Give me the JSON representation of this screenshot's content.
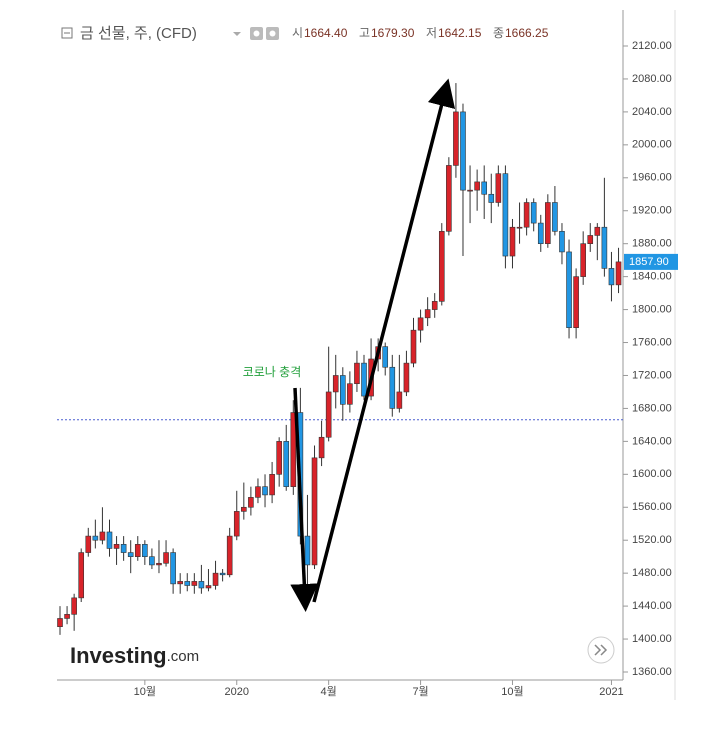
{
  "chart_data": {
    "type": "candlestick",
    "title": "금 선물, 주, (CFD)",
    "header_values": [
      {
        "name": "시",
        "value": 1664.4,
        "label": "1664.40"
      },
      {
        "name": "고",
        "value": 1679.3,
        "label": "1679.30"
      },
      {
        "name": "저",
        "value": 1642.15,
        "label": "1642.15"
      },
      {
        "name": "종",
        "value": 1666.25,
        "label": "1666.25"
      }
    ],
    "annotation": "코로나 충격",
    "watermark": {
      "brand": "Investing",
      "suffix": ".com"
    },
    "last_price": {
      "value": 1857.9,
      "label": "1857.90"
    },
    "up_color": "#d8232a",
    "down_color": "#2196e3",
    "grid": false,
    "categories": [
      null,
      null,
      null,
      null,
      null,
      null,
      null,
      null,
      null,
      null,
      null,
      null,
      "10월",
      null,
      null,
      null,
      null,
      null,
      null,
      null,
      null,
      null,
      null,
      null,
      null,
      "2020",
      null,
      null,
      null,
      null,
      null,
      null,
      null,
      null,
      null,
      null,
      null,
      null,
      "4월",
      null,
      null,
      null,
      null,
      null,
      null,
      null,
      null,
      null,
      null,
      null,
      null,
      "7월",
      null,
      null,
      null,
      null,
      null,
      null,
      null,
      null,
      null,
      null,
      null,
      null,
      "10월",
      null,
      null,
      null,
      null,
      null,
      null,
      null,
      null,
      null,
      null,
      null,
      null,
      null,
      "2021",
      null
    ],
    "open": [
      1415,
      1425,
      1430,
      1450,
      1505,
      1525,
      1520,
      1530,
      1510,
      1515,
      1505,
      1500,
      1515,
      1500,
      1490,
      1492,
      1505,
      1467,
      1470,
      1465,
      1470,
      1462,
      1465,
      1480,
      1478,
      1525,
      1555,
      1560,
      1572,
      1585,
      1575,
      1600,
      1640,
      1585,
      1675,
      1525,
      1490,
      1620,
      1645,
      1700,
      1720,
      1685,
      1710,
      1735,
      1695,
      1740,
      1755,
      1730,
      1680,
      1700,
      1735,
      1775,
      1790,
      1800,
      1810,
      1895,
      1975,
      2040,
      1945,
      1945,
      1955,
      1940,
      1930,
      1965,
      1865,
      1900,
      1900,
      1930,
      1905,
      1880,
      1930,
      1895,
      1870,
      1778,
      1840,
      1880,
      1890,
      1900,
      1850,
      1830
    ],
    "high": [
      1440,
      1440,
      1455,
      1510,
      1535,
      1545,
      1560,
      1545,
      1525,
      1525,
      1520,
      1525,
      1520,
      1510,
      1520,
      1520,
      1510,
      1480,
      1480,
      1480,
      1490,
      1485,
      1495,
      1485,
      1535,
      1580,
      1590,
      1585,
      1595,
      1600,
      1615,
      1645,
      1660,
      1690,
      1705,
      1575,
      1635,
      1665,
      1755,
      1745,
      1730,
      1725,
      1750,
      1745,
      1765,
      1765,
      1760,
      1745,
      1745,
      1750,
      1790,
      1800,
      1815,
      1820,
      1905,
      1985,
      2075,
      2050,
      1975,
      1970,
      1975,
      1965,
      1975,
      1975,
      1910,
      1930,
      1935,
      1935,
      1915,
      1940,
      1950,
      1905,
      1885,
      1850,
      1895,
      1905,
      1905,
      1960,
      1870,
      1875
    ],
    "low": [
      1405,
      1418,
      1410,
      1445,
      1500,
      1510,
      1515,
      1500,
      1490,
      1495,
      1480,
      1495,
      1490,
      1485,
      1480,
      1488,
      1455,
      1455,
      1458,
      1455,
      1455,
      1458,
      1460,
      1470,
      1475,
      1520,
      1545,
      1550,
      1565,
      1560,
      1565,
      1585,
      1580,
      1575,
      1515,
      1450,
      1485,
      1610,
      1640,
      1680,
      1665,
      1675,
      1700,
      1690,
      1690,
      1725,
      1720,
      1670,
      1675,
      1695,
      1730,
      1760,
      1780,
      1790,
      1805,
      1890,
      1960,
      1865,
      1905,
      1920,
      1910,
      1905,
      1925,
      1850,
      1850,
      1880,
      1890,
      1895,
      1870,
      1875,
      1890,
      1855,
      1765,
      1765,
      1830,
      1870,
      1860,
      1840,
      1810,
      1820
    ],
    "close": [
      1425,
      1430,
      1450,
      1505,
      1525,
      1520,
      1530,
      1510,
      1515,
      1505,
      1500,
      1515,
      1500,
      1490,
      1492,
      1505,
      1467,
      1470,
      1465,
      1470,
      1462,
      1465,
      1480,
      1478,
      1525,
      1555,
      1560,
      1572,
      1585,
      1575,
      1600,
      1640,
      1585,
      1675,
      1525,
      1490,
      1620,
      1645,
      1700,
      1720,
      1685,
      1710,
      1735,
      1695,
      1740,
      1755,
      1730,
      1680,
      1700,
      1735,
      1775,
      1790,
      1800,
      1810,
      1895,
      1975,
      2040,
      1945,
      1945,
      1955,
      1940,
      1930,
      1965,
      1865,
      1900,
      1900,
      1930,
      1905,
      1880,
      1930,
      1895,
      1870,
      1778,
      1840,
      1880,
      1890,
      1900,
      1850,
      1830,
      1857.9
    ],
    "ylim": [
      1340,
      2150
    ],
    "yticks": [
      {
        "value": 1360,
        "label": "1360.00"
      },
      {
        "value": 1400,
        "label": "1400.00"
      },
      {
        "value": 1440,
        "label": "1440.00"
      },
      {
        "value": 1480,
        "label": "1480.00"
      },
      {
        "value": 1520,
        "label": "1520.00"
      },
      {
        "value": 1560,
        "label": "1560.00"
      },
      {
        "value": 1600,
        "label": "1600.00"
      },
      {
        "value": 1640,
        "label": "1640.00"
      },
      {
        "value": 1680,
        "label": "1680.00"
      },
      {
        "value": 1720,
        "label": "1720.00"
      },
      {
        "value": 1760,
        "label": "1760.00"
      },
      {
        "value": 1800,
        "label": "1800.00"
      },
      {
        "value": 1840,
        "label": "1840.00"
      },
      {
        "value": 1880,
        "label": "1880.00"
      },
      {
        "value": 1920,
        "label": "1920.00"
      },
      {
        "value": 1960,
        "label": "1960.00"
      },
      {
        "value": 2000,
        "label": "2000.00"
      },
      {
        "value": 2040,
        "label": "2040.00"
      },
      {
        "value": 2080,
        "label": "2080.00"
      },
      {
        "value": 2120,
        "label": "2120.00"
      }
    ]
  }
}
